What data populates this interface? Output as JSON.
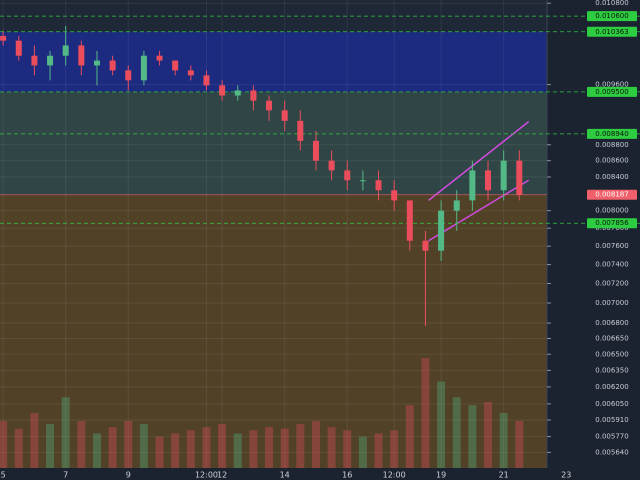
{
  "chart_data": {
    "type": "candlestick",
    "log_scale": true,
    "grid": true,
    "up_color": "#53b987",
    "down_color": "#eb4d5c",
    "x": [
      5,
      5.5,
      6,
      6.5,
      7,
      7.5,
      8,
      8.5,
      9,
      9.5,
      10,
      10.5,
      11,
      11.5,
      12,
      12.5,
      13,
      13.5,
      14,
      14.5,
      15,
      15.5,
      16,
      16.5,
      17,
      17.5,
      18,
      18.5,
      19,
      19.5,
      20,
      20.5,
      21,
      21.5
    ],
    "open": [
      0.0103,
      0.01023,
      0.01001,
      0.00987,
      0.01001,
      0.01016,
      0.00987,
      0.00994,
      0.0098,
      0.00966,
      0.01001,
      0.00994,
      0.0098,
      0.00973,
      0.00959,
      0.00945,
      0.00952,
      0.00938,
      0.00925,
      0.00911,
      0.00885,
      0.0086,
      0.00848,
      0.00836,
      0.00836,
      0.00824,
      0.00812,
      0.00766,
      0.00755,
      0.008,
      0.00812,
      0.00848,
      0.00824,
      0.0086
    ],
    "high": [
      0.01038,
      0.0103,
      0.01016,
      0.01008,
      0.01045,
      0.01023,
      0.01008,
      0.01001,
      0.00987,
      0.01008,
      0.01008,
      0.00994,
      0.00987,
      0.0098,
      0.00966,
      0.00959,
      0.00959,
      0.00945,
      0.00938,
      0.00925,
      0.00898,
      0.00873,
      0.0086,
      0.00848,
      0.00848,
      0.00836,
      0.00812,
      0.00777,
      0.00812,
      0.00824,
      0.0086,
      0.0086,
      0.00873,
      0.00873
    ],
    "low": [
      0.01016,
      0.00994,
      0.00973,
      0.00966,
      0.00987,
      0.00973,
      0.00959,
      0.00973,
      0.00952,
      0.00959,
      0.00987,
      0.00973,
      0.00966,
      0.00952,
      0.00938,
      0.00938,
      0.00925,
      0.00911,
      0.00898,
      0.00873,
      0.00848,
      0.00836,
      0.00824,
      0.00824,
      0.00812,
      0.008,
      0.00755,
      0.00677,
      0.00744,
      0.00777,
      0.008,
      0.00812,
      0.00812,
      0.00812
    ],
    "close": [
      0.01023,
      0.01001,
      0.00987,
      0.01001,
      0.01016,
      0.00987,
      0.00994,
      0.0098,
      0.00966,
      0.01001,
      0.00994,
      0.0098,
      0.00973,
      0.00959,
      0.00945,
      0.00952,
      0.00938,
      0.00925,
      0.00911,
      0.00885,
      0.0086,
      0.00848,
      0.00836,
      0.00836,
      0.00824,
      0.00812,
      0.00766,
      0.00755,
      0.008,
      0.00812,
      0.00848,
      0.00824,
      0.0086,
      0.008187
    ],
    "volume": [
      30,
      25,
      35,
      28,
      45,
      30,
      22,
      26,
      30,
      28,
      20,
      22,
      24,
      26,
      28,
      22,
      24,
      26,
      25,
      28,
      30,
      26,
      24,
      20,
      22,
      24,
      40,
      70,
      55,
      45,
      40,
      42,
      35,
      30
    ],
    "xlim": [
      4.9,
      23.6
    ],
    "xticks": [
      5,
      7,
      9,
      {
        "value": 11.5,
        "label": "12:00"
      },
      12,
      14,
      16,
      {
        "value": 17.5,
        "label": "12:00"
      },
      19,
      21,
      23
    ],
    "ylim": [
      0.005514,
      0.01085
    ],
    "yticks": [
      {
        "value": 0.0108,
        "label": "0.010800"
      },
      {
        "value": 0.0096,
        "label": "0.009600"
      },
      {
        "value": 0.0088,
        "label": "0.008800"
      },
      {
        "value": 0.0086,
        "label": "0.008600"
      },
      {
        "value": 0.0084,
        "label": "0.008400"
      },
      {
        "value": 0.008,
        "label": "0.008000"
      },
      {
        "value": 0.0078,
        "label": "0.007800"
      },
      {
        "value": 0.0076,
        "label": "0.007600"
      },
      {
        "value": 0.0074,
        "label": "0.007400"
      },
      {
        "value": 0.0072,
        "label": "0.007200"
      },
      {
        "value": 0.007,
        "label": "0.007000"
      },
      {
        "value": 0.0068,
        "label": "0.006800"
      },
      {
        "value": 0.00665,
        "label": "0.006650"
      },
      {
        "value": 0.0065,
        "label": "0.006500"
      },
      {
        "value": 0.00635,
        "label": "0.006350"
      },
      {
        "value": 0.0062,
        "label": "0.006200"
      },
      {
        "value": 0.00605,
        "label": "0.006050"
      },
      {
        "value": 0.00591,
        "label": "0.005910"
      },
      {
        "value": 0.00577,
        "label": "0.005770"
      },
      {
        "value": 0.00564,
        "label": "0.005640"
      }
    ],
    "levels": [
      {
        "value": 0.0106,
        "label": "0.010600"
      },
      {
        "value": 0.010363,
        "label": "0.010363"
      },
      {
        "value": 0.0095,
        "label": "0.009500"
      },
      {
        "value": 0.00894,
        "label": "0.008940"
      },
      {
        "value": 0.007856,
        "label": "0.007856"
      }
    ],
    "level_color": "#2ecc40",
    "last_price": {
      "value": 0.008187,
      "label": "0.008187",
      "color": "#f0606a"
    },
    "zones": [
      {
        "from": 0.010363,
        "to": 0.0095,
        "color": "#1c2a8c"
      },
      {
        "from": 0.0095,
        "to": 0.008187,
        "color": "#344a48"
      },
      {
        "from": 0.008187,
        "to": 0.005514,
        "color": "#5a4525"
      }
    ],
    "trendlines": [
      {
        "x": [
          18.6,
          21.8
        ],
        "y": [
          0.00812,
          0.0091
        ],
        "color": "#d04ce0"
      },
      {
        "x": [
          18.6,
          21.8
        ],
        "y": [
          0.00766,
          0.00836
        ],
        "color": "#d04ce0"
      }
    ]
  }
}
